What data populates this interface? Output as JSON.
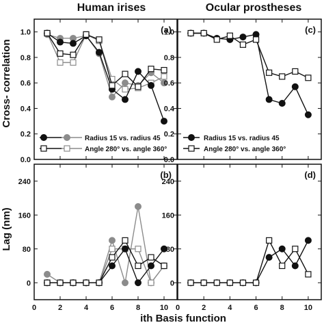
{
  "figure": {
    "column_titles": [
      "Human irises",
      "Ocular prostheses"
    ],
    "ylabel_top": "Cross- correlation",
    "ylabel_bottom": "Lag (nm)",
    "xlabel": "ith Basis function"
  },
  "legend": {
    "radius_label": "Radius 15 vs. radius 45",
    "angle_label": "Angle 280° vs. angle 360°"
  },
  "colors": {
    "black": "#111111",
    "gray": "#8c8c8c"
  },
  "chart_data": [
    {
      "id": "a",
      "panel_label": "(a)",
      "type": "line",
      "xlim": [
        0,
        11
      ],
      "ylim": [
        0,
        1.1
      ],
      "xticks": [
        0,
        2,
        4,
        6,
        8,
        10
      ],
      "yticks": [
        0.0,
        0.2,
        0.4,
        0.6,
        0.8,
        1.0
      ],
      "ytick_labels": [
        "0.0",
        "0.2",
        "0.4",
        "0.6",
        "0.8",
        "1.0"
      ],
      "grid": false,
      "legend": "bottom-left",
      "x": [
        1,
        2,
        3,
        4,
        5,
        6,
        7,
        8,
        9,
        10
      ],
      "series": [
        {
          "legend_key": "radius",
          "marker": "circle",
          "fill": "filled",
          "color": "black",
          "values": [
            0.99,
            0.92,
            0.91,
            0.97,
            0.84,
            0.55,
            0.47,
            0.69,
            0.58,
            0.3
          ]
        },
        {
          "legend_key": "radius",
          "marker": "circle",
          "fill": "filled",
          "color": "gray",
          "values": [
            0.98,
            0.95,
            0.95,
            0.97,
            0.83,
            0.49,
            0.6,
            0.58,
            0.68,
            0.6
          ]
        },
        {
          "legend_key": "angle",
          "marker": "square",
          "fill": "open",
          "color": "black",
          "values": [
            0.99,
            0.83,
            0.82,
            0.98,
            0.94,
            0.58,
            0.67,
            0.57,
            0.71,
            0.7
          ]
        },
        {
          "legend_key": "angle",
          "marker": "square",
          "fill": "open",
          "color": "gray",
          "values": [
            0.99,
            0.76,
            0.76,
            0.98,
            0.93,
            0.63,
            0.55,
            0.56,
            0.6,
            0.65
          ]
        }
      ]
    },
    {
      "id": "c",
      "panel_label": "(c)",
      "type": "line",
      "xlim": [
        0,
        11
      ],
      "ylim": [
        0,
        1.1
      ],
      "xticks": [
        0,
        2,
        4,
        6,
        8,
        10
      ],
      "yticks": [
        0.0,
        0.2,
        0.4,
        0.6,
        0.8,
        1.0
      ],
      "ytick_labels": [
        "0.0",
        "0.2",
        "0.4",
        "0.6",
        "0.8",
        "1.0"
      ],
      "grid": false,
      "legend": "bottom-left",
      "x": [
        1,
        2,
        3,
        4,
        5,
        6,
        7,
        8,
        9,
        10
      ],
      "series": [
        {
          "legend_key": "radius",
          "marker": "circle",
          "fill": "filled",
          "color": "black",
          "values": [
            0.99,
            0.99,
            0.95,
            0.94,
            0.96,
            0.98,
            0.47,
            0.44,
            0.57,
            0.35
          ]
        },
        {
          "legend_key": "angle",
          "marker": "square",
          "fill": "open",
          "color": "black",
          "values": [
            0.99,
            0.99,
            0.94,
            0.97,
            0.9,
            0.94,
            0.68,
            0.65,
            0.69,
            0.64
          ]
        }
      ]
    },
    {
      "id": "b",
      "panel_label": "(b)",
      "type": "line",
      "xlim": [
        0,
        11
      ],
      "ylim": [
        -40,
        280
      ],
      "xticks": [
        0,
        2,
        4,
        6,
        8,
        10
      ],
      "yticks": [
        0,
        80,
        160,
        240
      ],
      "ytick_labels": [
        "0",
        "80",
        "160",
        "240"
      ],
      "grid": false,
      "x": [
        1,
        2,
        3,
        4,
        5,
        6,
        7,
        8,
        9,
        10
      ],
      "series": [
        {
          "marker": "circle",
          "fill": "filled",
          "color": "black",
          "values": [
            0,
            0,
            0,
            0,
            0,
            40,
            80,
            0,
            40,
            80
          ]
        },
        {
          "marker": "circle",
          "fill": "filled",
          "color": "gray",
          "values": [
            20,
            0,
            0,
            0,
            0,
            100,
            0,
            180,
            0,
            40
          ]
        },
        {
          "marker": "square",
          "fill": "open",
          "color": "black",
          "values": [
            0,
            0,
            0,
            0,
            0,
            60,
            100,
            40,
            60,
            40
          ]
        },
        {
          "marker": "square",
          "fill": "open",
          "color": "gray",
          "values": [
            0,
            0,
            0,
            0,
            0,
            80,
            80,
            80,
            0,
            40
          ]
        }
      ]
    },
    {
      "id": "d",
      "panel_label": "(d)",
      "type": "line",
      "xlim": [
        0,
        11
      ],
      "ylim": [
        -40,
        280
      ],
      "xticks": [
        0,
        2,
        4,
        6,
        8,
        10
      ],
      "yticks": [
        0,
        80,
        160,
        240
      ],
      "ytick_labels": [
        "0",
        "80",
        "160",
        "240"
      ],
      "grid": false,
      "x": [
        1,
        2,
        3,
        4,
        5,
        6,
        7,
        8,
        9,
        10
      ],
      "series": [
        {
          "marker": "circle",
          "fill": "filled",
          "color": "black",
          "values": [
            0,
            0,
            0,
            0,
            0,
            0,
            60,
            80,
            40,
            100
          ]
        },
        {
          "marker": "square",
          "fill": "open",
          "color": "black",
          "values": [
            0,
            0,
            0,
            0,
            0,
            0,
            100,
            40,
            80,
            20
          ]
        }
      ]
    }
  ]
}
